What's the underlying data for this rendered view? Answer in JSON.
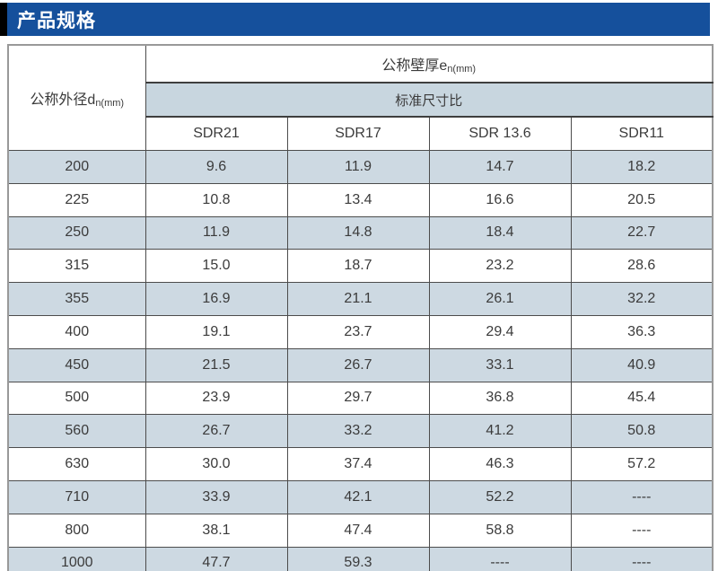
{
  "page": {
    "title": "产品规格"
  },
  "colors": {
    "title_bar": "#15509c",
    "title_accent": "#000000",
    "stripe": "#cdd9e2",
    "header_stripe": "#c8d6df",
    "border_inner": "#4c4c4c",
    "border_outer": "#999999",
    "text": "#3b3b3b"
  },
  "table": {
    "corner_header": {
      "main": "公称外径d",
      "sub": "n(mm)"
    },
    "span_header": {
      "main": "公称壁厚e",
      "sub": "n(mm)"
    },
    "subspan_header": "标准尺寸比",
    "sdr_columns": [
      "SDR21",
      "SDR17",
      "SDR 13.6",
      "SDR11"
    ],
    "rows": [
      {
        "dn": "200",
        "values": [
          "9.6",
          "11.9",
          "14.7",
          "18.2"
        ]
      },
      {
        "dn": "225",
        "values": [
          "10.8",
          "13.4",
          "16.6",
          "20.5"
        ]
      },
      {
        "dn": "250",
        "values": [
          "11.9",
          "14.8",
          "18.4",
          "22.7"
        ]
      },
      {
        "dn": "315",
        "values": [
          "15.0",
          "18.7",
          "23.2",
          "28.6"
        ]
      },
      {
        "dn": "355",
        "values": [
          "16.9",
          "21.1",
          "26.1",
          "32.2"
        ]
      },
      {
        "dn": "400",
        "values": [
          "19.1",
          "23.7",
          "29.4",
          "36.3"
        ]
      },
      {
        "dn": "450",
        "values": [
          "21.5",
          "26.7",
          "33.1",
          "40.9"
        ]
      },
      {
        "dn": "500",
        "values": [
          "23.9",
          "29.7",
          "36.8",
          "45.4"
        ]
      },
      {
        "dn": "560",
        "values": [
          "26.7",
          "33.2",
          "41.2",
          "50.8"
        ]
      },
      {
        "dn": "630",
        "values": [
          "30.0",
          "37.4",
          "46.3",
          "57.2"
        ]
      },
      {
        "dn": "710",
        "values": [
          "33.9",
          "42.1",
          "52.2",
          "----"
        ]
      },
      {
        "dn": "800",
        "values": [
          "38.1",
          "47.4",
          "58.8",
          "----"
        ]
      },
      {
        "dn": "1000",
        "values": [
          "47.7",
          "59.3",
          "----",
          "----"
        ]
      }
    ]
  }
}
